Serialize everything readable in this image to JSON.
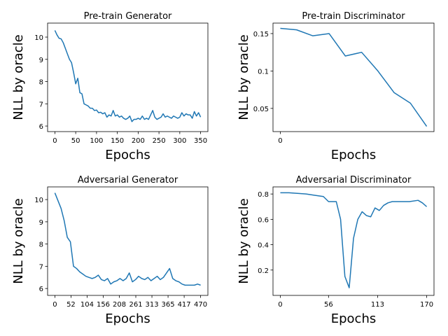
{
  "chart_data": [
    {
      "type": "line",
      "title": "Pre-train Generator",
      "xlabel": "Epochs",
      "ylabel": "NLL by oracle",
      "color": "#1f77b4",
      "x": [
        0,
        5,
        10,
        15,
        20,
        25,
        30,
        35,
        40,
        45,
        50,
        55,
        60,
        65,
        70,
        75,
        80,
        85,
        90,
        95,
        100,
        105,
        110,
        115,
        120,
        125,
        130,
        135,
        140,
        145,
        150,
        155,
        160,
        165,
        170,
        175,
        180,
        185,
        190,
        195,
        200,
        205,
        210,
        215,
        220,
        225,
        230,
        235,
        240,
        245,
        250,
        255,
        260,
        265,
        270,
        275,
        280,
        285,
        290,
        295,
        300,
        305,
        310,
        315,
        320,
        325,
        330,
        335,
        340,
        345,
        350
      ],
      "values": [
        10.3,
        10.1,
        9.95,
        9.92,
        9.75,
        9.5,
        9.25,
        9.0,
        8.85,
        8.4,
        7.9,
        8.15,
        7.5,
        7.45,
        7.0,
        6.95,
        6.9,
        6.8,
        6.8,
        6.7,
        6.72,
        6.6,
        6.62,
        6.55,
        6.6,
        6.4,
        6.5,
        6.45,
        6.7,
        6.45,
        6.5,
        6.4,
        6.45,
        6.35,
        6.3,
        6.35,
        6.45,
        6.2,
        6.3,
        6.3,
        6.35,
        6.3,
        6.45,
        6.3,
        6.35,
        6.3,
        6.5,
        6.7,
        6.4,
        6.3,
        6.35,
        6.4,
        6.55,
        6.4,
        6.45,
        6.4,
        6.35,
        6.45,
        6.4,
        6.35,
        6.4,
        6.6,
        6.45,
        6.55,
        6.5,
        6.5,
        6.35,
        6.65,
        6.45,
        6.6,
        6.4
      ],
      "xlim": [
        -17.5,
        367.5
      ],
      "xticks": [
        0,
        50,
        100,
        150,
        200,
        250,
        300,
        350
      ],
      "ylim": [
        5.75,
        10.63
      ],
      "yticks": [
        6,
        7,
        8,
        9,
        10
      ]
    },
    {
      "type": "line",
      "title": "Pre-train Discriminator",
      "xlabel": "Epochs",
      "ylabel": "NLL by oracle",
      "color": "#1f77b4",
      "x": [
        0,
        1,
        2,
        3,
        4,
        5,
        6,
        7,
        8,
        9
      ],
      "values": [
        0.157,
        0.155,
        0.147,
        0.15,
        0.12,
        0.125,
        0.1,
        0.071,
        0.057,
        0.026
      ],
      "xlim": [
        -0.45,
        9.45
      ],
      "xticks": [
        0
      ],
      "ylim": [
        0.019,
        0.164
      ],
      "yticks": [
        0.05,
        0.1,
        0.15
      ]
    },
    {
      "type": "line",
      "title": "Adversarial Generator",
      "xlabel": "Epochs",
      "ylabel": "NLL by oracle",
      "color": "#1f77b4",
      "x": [
        0,
        10,
        20,
        30,
        40,
        50,
        60,
        70,
        80,
        90,
        100,
        110,
        120,
        130,
        140,
        150,
        160,
        170,
        180,
        190,
        200,
        210,
        220,
        230,
        240,
        250,
        260,
        270,
        280,
        290,
        300,
        310,
        320,
        330,
        340,
        350,
        360,
        370,
        380,
        390,
        400,
        410,
        420,
        430,
        440,
        450,
        460,
        470
      ],
      "values": [
        10.3,
        9.95,
        9.6,
        9.05,
        8.3,
        8.1,
        7.0,
        6.9,
        6.75,
        6.65,
        6.55,
        6.5,
        6.45,
        6.5,
        6.6,
        6.4,
        6.35,
        6.45,
        6.2,
        6.3,
        6.35,
        6.45,
        6.35,
        6.45,
        6.7,
        6.3,
        6.4,
        6.55,
        6.45,
        6.4,
        6.5,
        6.35,
        6.45,
        6.55,
        6.4,
        6.5,
        6.7,
        6.9,
        6.45,
        6.35,
        6.3,
        6.2,
        6.15,
        6.15,
        6.15,
        6.15,
        6.2,
        6.15
      ],
      "xlim": [
        -23.5,
        493.5
      ],
      "xticks": [
        0,
        52,
        104,
        156,
        208,
        261,
        313,
        365,
        417,
        470
      ],
      "ylim": [
        5.69,
        10.57
      ],
      "yticks": [
        6,
        7,
        8,
        9,
        10
      ]
    },
    {
      "type": "line",
      "title": "Adversarial Discriminator",
      "xlabel": "Epochs",
      "ylabel": "NLL by oracle",
      "color": "#1f77b4",
      "x": [
        0,
        10,
        20,
        30,
        40,
        50,
        56,
        65,
        70,
        75,
        80,
        85,
        90,
        95,
        100,
        105,
        110,
        115,
        120,
        125,
        130,
        140,
        150,
        160,
        165,
        170
      ],
      "values": [
        0.81,
        0.81,
        0.805,
        0.8,
        0.79,
        0.78,
        0.74,
        0.74,
        0.6,
        0.15,
        0.06,
        0.45,
        0.6,
        0.66,
        0.63,
        0.62,
        0.69,
        0.67,
        0.71,
        0.73,
        0.74,
        0.74,
        0.74,
        0.75,
        0.73,
        0.7
      ],
      "xlim": [
        -8.5,
        178.5
      ],
      "xticks": [
        0,
        56,
        113,
        170
      ],
      "ylim": [
        0.0,
        0.856
      ],
      "yticks": [
        0.2,
        0.4,
        0.6,
        0.8
      ]
    }
  ]
}
